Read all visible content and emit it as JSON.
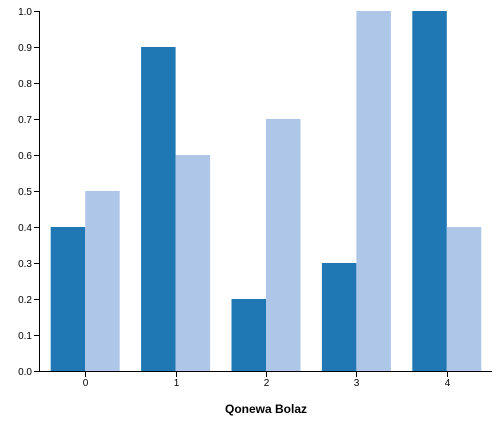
{
  "chart_data": {
    "type": "bar",
    "title": "",
    "xlabel": "Qonewa Bolaz",
    "ylabel": "",
    "categories": [
      "0",
      "1",
      "2",
      "3",
      "4"
    ],
    "series": [
      {
        "values": [
          0.4,
          0.9,
          0.2,
          0.3,
          1.0
        ],
        "color": "#1f77b4"
      },
      {
        "values": [
          0.5,
          0.6,
          0.7,
          1.0,
          0.4
        ],
        "color": "#aec7e8"
      }
    ],
    "ylim": [
      0,
      1.0
    ],
    "yticks": [
      "0.0",
      "0.1",
      "0.2",
      "0.3",
      "0.4",
      "0.5",
      "0.6",
      "0.7",
      "0.8",
      "0.9",
      "1.0"
    ],
    "grid": false,
    "legend": "none"
  }
}
